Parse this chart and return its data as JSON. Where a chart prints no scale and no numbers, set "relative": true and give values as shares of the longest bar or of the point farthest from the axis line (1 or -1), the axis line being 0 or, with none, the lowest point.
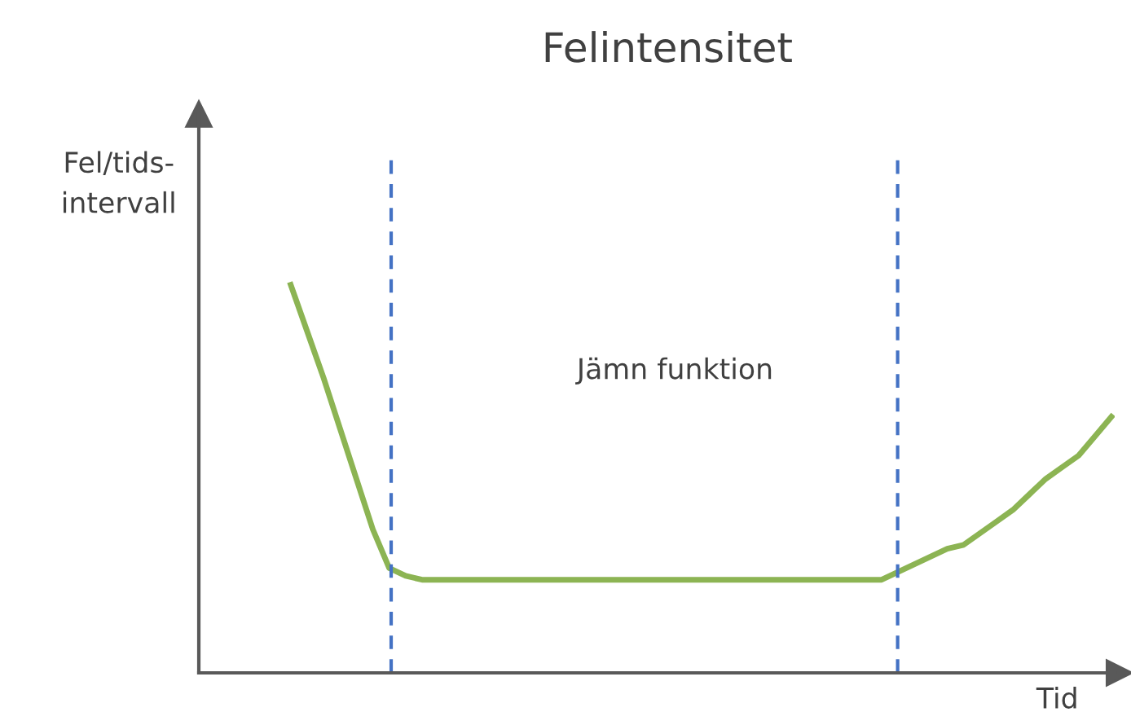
{
  "chart_data": {
    "type": "line",
    "title": "Felintensitet",
    "xlabel": "Tid",
    "ylabel": "Fel/tids-\nintervall",
    "relative": true,
    "categories": [
      null,
      null,
      null,
      null,
      null,
      null,
      null,
      null,
      null,
      null,
      null,
      null,
      null,
      null,
      null,
      null,
      null,
      null,
      null,
      null,
      null,
      null,
      null,
      null,
      null,
      null,
      null,
      null,
      null,
      null,
      null,
      null,
      null,
      null,
      null,
      null,
      null,
      null,
      null,
      null,
      null,
      null,
      null,
      null,
      null,
      null,
      null,
      null,
      null,
      null,
      null
    ],
    "series": [
      {
        "color": "#8cb453",
        "values": [
          1.0,
          0.88,
          0.76,
          0.63,
          0.5,
          0.37,
          0.27,
          0.25,
          0.24,
          0.24,
          0.24,
          0.24,
          0.24,
          0.24,
          0.24,
          0.24,
          0.24,
          0.24,
          0.24,
          0.24,
          0.24,
          0.24,
          0.24,
          0.24,
          0.24,
          0.24,
          0.24,
          0.24,
          0.24,
          0.24,
          0.24,
          0.24,
          0.24,
          0.24,
          0.24,
          0.24,
          0.24,
          0.26,
          0.28,
          0.3,
          0.32,
          0.33,
          0.36,
          0.39,
          0.42,
          0.46,
          0.5,
          0.53,
          0.56,
          0.61,
          0.66
        ]
      }
    ],
    "annotations": [
      "Jämn funktion"
    ],
    "grid": false,
    "legend": false,
    "marker": "none",
    "line_style": "solid"
  }
}
